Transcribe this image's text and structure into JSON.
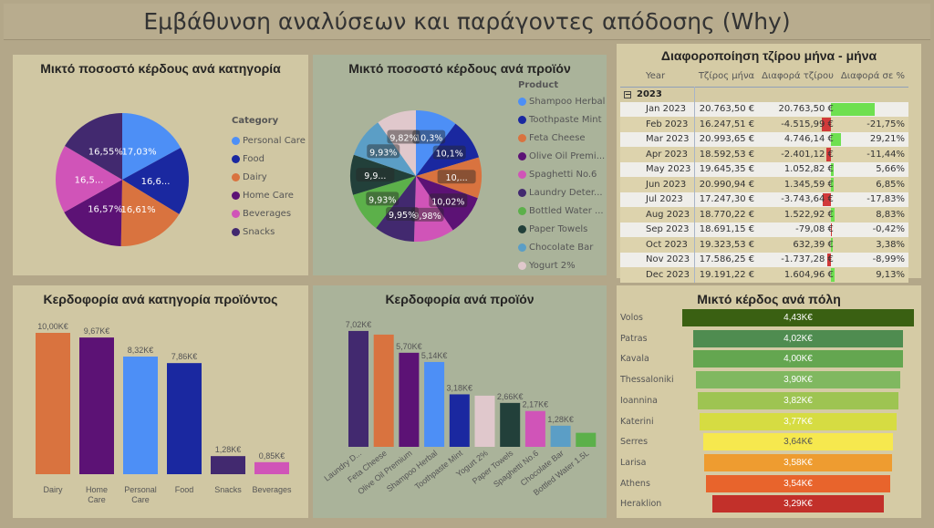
{
  "title": "Εμβάθυνση αναλύσεων και παράγοντες απόδοσης (Why)",
  "pie_category": {
    "title": "Μικτό ποσοστό κέρδους ανά κατηγορία",
    "legend_title": "Category",
    "slices": [
      {
        "name": "Personal Care",
        "value": 17.03,
        "label": "17,03%",
        "color": "#4d8ff6"
      },
      {
        "name": "Food",
        "value": 16.65,
        "label": "16,6...",
        "color": "#1a28a0"
      },
      {
        "name": "Dairy",
        "value": 16.61,
        "label": "16,61%",
        "color": "#d9733f"
      },
      {
        "name": "Home Care",
        "value": 16.57,
        "label": "16,57%",
        "color": "#5c1275"
      },
      {
        "name": "Beverages",
        "value": 16.59,
        "label": "16,5...",
        "color": "#d054b8"
      },
      {
        "name": "Snacks",
        "value": 16.55,
        "label": "16,55%",
        "color": "#42296f"
      }
    ]
  },
  "pie_product": {
    "title": "Μικτό ποσοστό κέρδους ανά προϊόν",
    "legend_title": "Product",
    "slices": [
      {
        "name": "Shampoo Herbal",
        "value": 10.3,
        "label": "10,3%",
        "color": "#4d8ff6"
      },
      {
        "name": "Toothpaste Mint",
        "value": 10.1,
        "label": "10,1%",
        "color": "#1a28a0"
      },
      {
        "name": "Feta Cheese",
        "value": 10.05,
        "label": "10,...",
        "color": "#d9733f"
      },
      {
        "name": "Olive Oil Premi...",
        "value": 10.02,
        "label": "10,02%",
        "color": "#5c1275"
      },
      {
        "name": "Spaghetti No.6",
        "value": 9.98,
        "label": "9,98%",
        "color": "#d054b8"
      },
      {
        "name": "Laundry Deter...",
        "value": 9.95,
        "label": "9,95%",
        "color": "#42296f"
      },
      {
        "name": "Bottled Water ...",
        "value": 9.93,
        "label": "9,93%",
        "color": "#5cb04a"
      },
      {
        "name": "Paper Towels",
        "value": 9.9,
        "label": "9,9...",
        "color": "#22403a"
      },
      {
        "name": "Chocolate Bar",
        "value": 9.93,
        "label": "9,93%",
        "color": "#5b9ec6"
      },
      {
        "name": "Yogurt 2%",
        "value": 9.82,
        "label": "9,82%",
        "color": "#e0c8cc"
      }
    ]
  },
  "table": {
    "title": "Διαφοροποίηση τζίρου μήνα - μήνα",
    "headers": [
      "Year",
      "Τζίρος μήνα",
      "Διαφορά τζίρου",
      "Διαφορά σε %"
    ],
    "group": "2023",
    "rows": [
      {
        "m": "Jan 2023",
        "t": "20.763,50 €",
        "d": "20.763,50 €",
        "dv": 20763.5,
        "p": ""
      },
      {
        "m": "Feb 2023",
        "t": "16.247,51 €",
        "d": "-4.515,99 €",
        "dv": -4515.99,
        "p": "-21,75%"
      },
      {
        "m": "Mar 2023",
        "t": "20.993,65 €",
        "d": "4.746,14 €",
        "dv": 4746.14,
        "p": "29,21%"
      },
      {
        "m": "Apr 2023",
        "t": "18.592,53 €",
        "d": "-2.401,12 €",
        "dv": -2401.12,
        "p": "-11,44%"
      },
      {
        "m": "May 2023",
        "t": "19.645,35 €",
        "d": "1.052,82 €",
        "dv": 1052.82,
        "p": "5,66%"
      },
      {
        "m": "Jun 2023",
        "t": "20.990,94 €",
        "d": "1.345,59 €",
        "dv": 1345.59,
        "p": "6,85%"
      },
      {
        "m": "Jul 2023",
        "t": "17.247,30 €",
        "d": "-3.743,64 €",
        "dv": -3743.64,
        "p": "-17,83%"
      },
      {
        "m": "Aug 2023",
        "t": "18.770,22 €",
        "d": "1.522,92 €",
        "dv": 1522.92,
        "p": "8,83%"
      },
      {
        "m": "Sep 2023",
        "t": "18.691,15 €",
        "d": "-79,08 €",
        "dv": -79.08,
        "p": "-0,42%"
      },
      {
        "m": "Oct 2023",
        "t": "19.323,53 €",
        "d": "632,39 €",
        "dv": 632.39,
        "p": "3,38%"
      },
      {
        "m": "Nov 2023",
        "t": "17.586,25 €",
        "d": "-1.737,28 €",
        "dv": -1737.28,
        "p": "-8,99%"
      },
      {
        "m": "Dec 2023",
        "t": "19.191,22 €",
        "d": "1.604,96 €",
        "dv": 1604.96,
        "p": "9,13%"
      }
    ]
  },
  "chart_data": [
    {
      "type": "bar",
      "title": "Κερδοφορία ανά κατηγορία προϊόντος",
      "categories": [
        "Dairy",
        "Home Care",
        "Personal Care",
        "Food",
        "Snacks",
        "Beverages"
      ],
      "values": [
        10.0,
        9.67,
        8.32,
        7.86,
        1.28,
        0.85
      ],
      "labels": [
        "10,00K€",
        "9,67K€",
        "8,32K€",
        "7,86K€",
        "1,28K€",
        "0,85K€"
      ],
      "colors": [
        "#d9733f",
        "#5c1275",
        "#4d8ff6",
        "#1a28a0",
        "#42296f",
        "#d054b8"
      ],
      "unit": "K€"
    },
    {
      "type": "bar",
      "title": "Κερδοφορία ανά προϊόν",
      "categories": [
        "Laundry D...",
        "Feta Cheese",
        "Olive Oil Premium",
        "Shampoo Herbal",
        "Toothpaste Mint",
        "Yogurt 2%",
        "Paper Towels",
        "Spaghetti No.6",
        "Chocolate Bar",
        "Bottled Water 1.5L"
      ],
      "values": [
        7.02,
        6.8,
        5.7,
        5.14,
        3.18,
        3.1,
        2.66,
        2.17,
        1.28,
        0.85
      ],
      "labels": [
        "7,02K€",
        "",
        "5,70K€",
        "5,14K€",
        "3,18K€",
        "",
        "2,66K€",
        "2,17K€",
        "1,28K€",
        ""
      ],
      "colors": [
        "#42296f",
        "#d9733f",
        "#5c1275",
        "#4d8ff6",
        "#1a28a0",
        "#e0c8cc",
        "#22403a",
        "#d054b8",
        "#5b9ec6",
        "#5cb04a"
      ],
      "unit": "K€"
    },
    {
      "type": "funnel",
      "title": "Μικτό κέρδος ανά πόλη",
      "categories": [
        "Volos",
        "Patras",
        "Kavala",
        "Thessaloniki",
        "Ioannina",
        "Katerini",
        "Serres",
        "Larisa",
        "Athens",
        "Heraklion"
      ],
      "values": [
        4.43,
        4.02,
        4.0,
        3.9,
        3.82,
        3.77,
        3.64,
        3.58,
        3.54,
        3.29
      ],
      "labels": [
        "4,43K€",
        "4,02K€",
        "4,00K€",
        "3,90K€",
        "3,82K€",
        "3,77K€",
        "3,64K€",
        "3,58K€",
        "3,54K€",
        "3,29K€"
      ],
      "colors": [
        "#3a6012",
        "#4f8c50",
        "#64a650",
        "#80b860",
        "#9ec452",
        "#d6dc42",
        "#f6e84e",
        "#ee9c30",
        "#e8642c",
        "#c2302a"
      ],
      "unit": "K€"
    }
  ]
}
